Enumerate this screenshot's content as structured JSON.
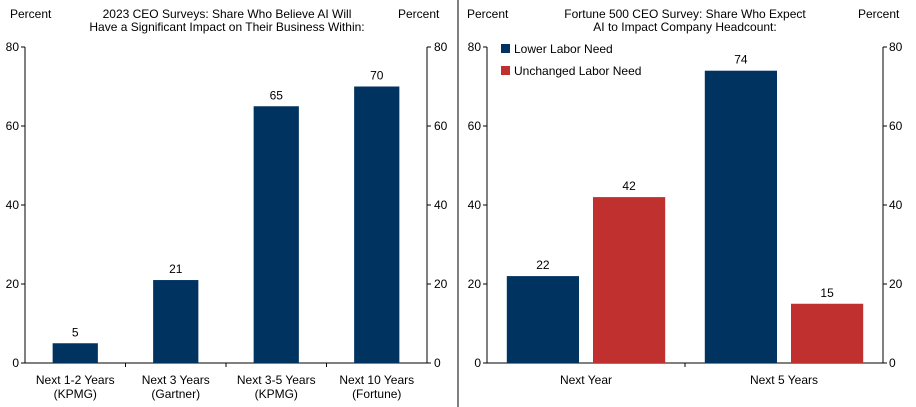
{
  "colors": {
    "navy": "#003360",
    "red": "#c0302f",
    "axis": "#000000",
    "divider": "#000000"
  },
  "chart_data": [
    {
      "type": "bar",
      "title_lines": [
        "2023 CEO Surveys: Share Who Believe AI Will",
        "Have a Significant Impact on Their Business Within:"
      ],
      "left_unit": "Percent",
      "right_unit": "Percent",
      "ylim": [
        0,
        80
      ],
      "yticks": [
        0,
        20,
        40,
        60,
        80
      ],
      "grid": false,
      "categories": [
        {
          "lines": [
            "Next 1-2 Years",
            "(KPMG)"
          ]
        },
        {
          "lines": [
            "Next 3 Years",
            "(Gartner)"
          ]
        },
        {
          "lines": [
            "Next 3-5 Years",
            "(KPMG)"
          ]
        },
        {
          "lines": [
            "Next 10 Years",
            "(Fortune)"
          ]
        }
      ],
      "series": [
        {
          "name": "Share",
          "color": "#003360",
          "values": [
            5,
            21,
            65,
            70
          ]
        }
      ]
    },
    {
      "type": "bar",
      "title_lines": [
        "Fortune 500 CEO Survey: Share Who Expect",
        "AI to Impact Company Headcount:"
      ],
      "left_unit": "Percent",
      "right_unit": "Percent",
      "ylim": [
        0,
        80
      ],
      "yticks": [
        0,
        20,
        40,
        60,
        80
      ],
      "grid": false,
      "legend_position": "top-left",
      "categories": [
        {
          "lines": [
            "Next Year"
          ]
        },
        {
          "lines": [
            "Next 5 Years"
          ]
        }
      ],
      "series": [
        {
          "name": "Lower Labor Need",
          "color": "#003360",
          "values": [
            22,
            74
          ]
        },
        {
          "name": "Unchanged Labor Need",
          "color": "#c0302f",
          "values": [
            42,
            15
          ]
        }
      ]
    }
  ]
}
